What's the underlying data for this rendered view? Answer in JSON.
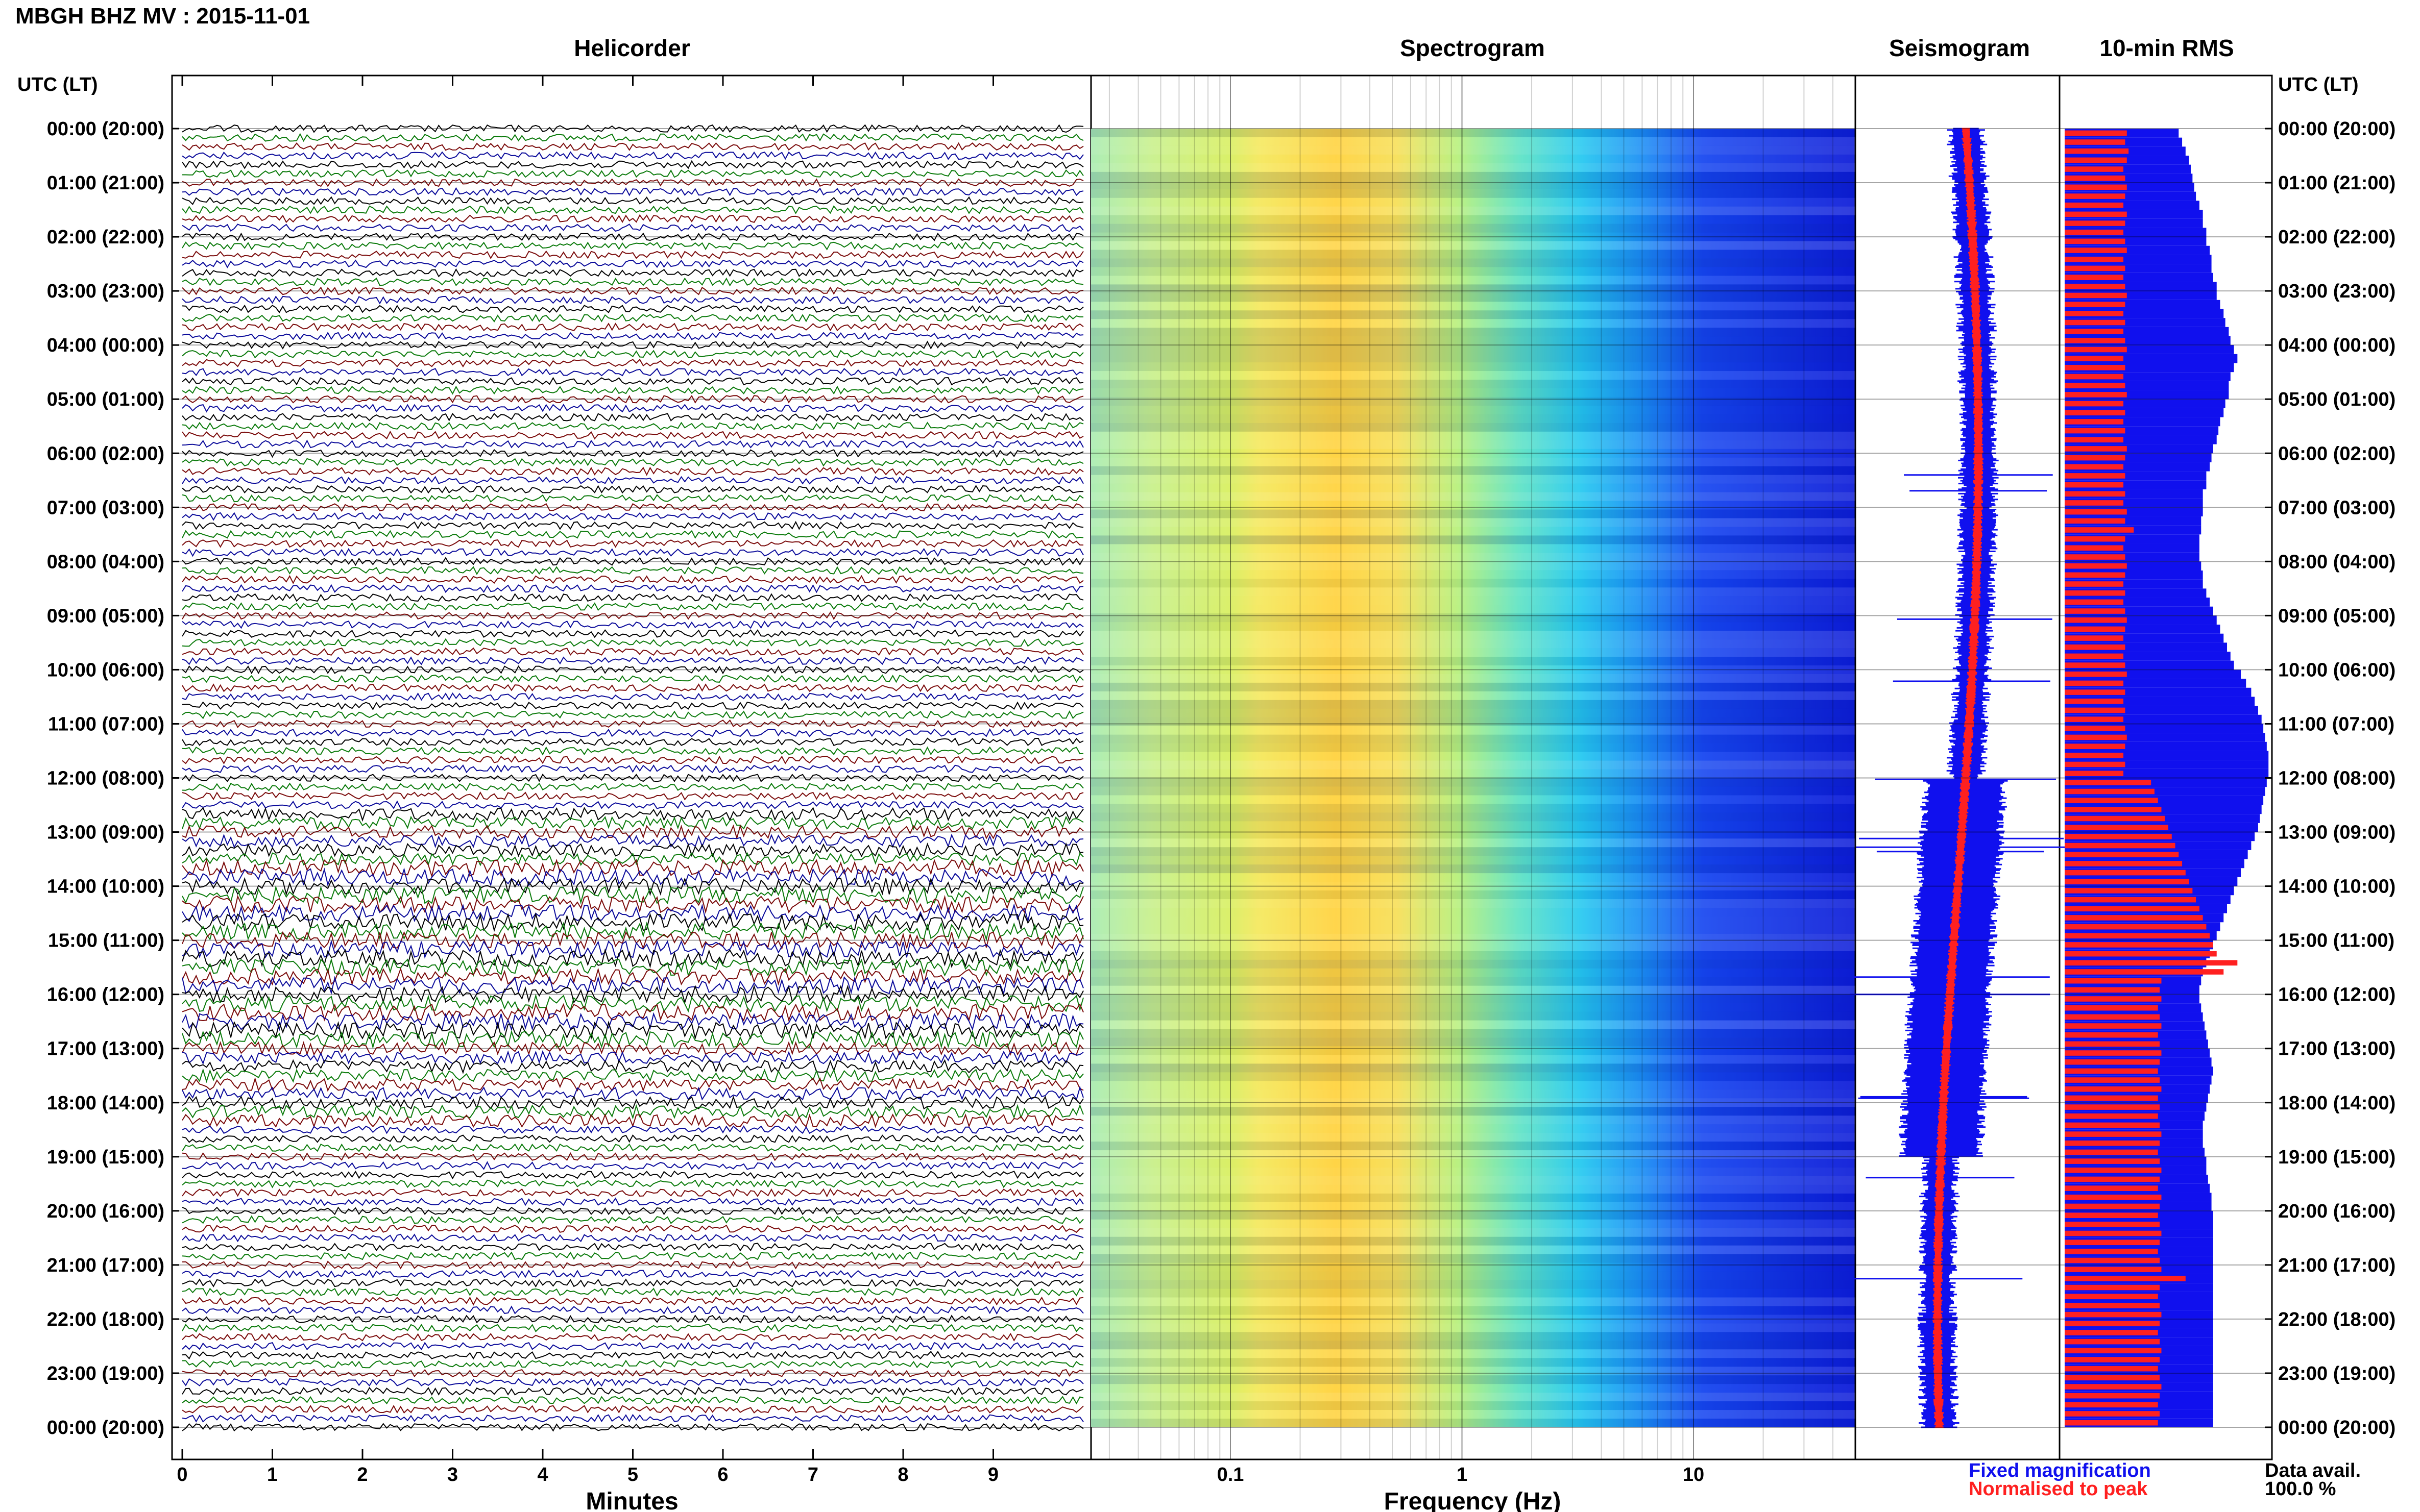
{
  "title": "MBGH BHZ MV : 2015-11-01",
  "time_axis_label": "UTC (LT)",
  "panels": {
    "helicorder": "Helicorder",
    "spectrogram": "Spectrogram",
    "seismogram": "Seismogram",
    "rms": "10-min RMS"
  },
  "time_ticks": [
    "00:00 (20:00)",
    "01:00 (21:00)",
    "02:00 (22:00)",
    "03:00 (23:00)",
    "04:00 (00:00)",
    "05:00 (01:00)",
    "06:00 (02:00)",
    "07:00 (03:00)",
    "08:00 (04:00)",
    "09:00 (05:00)",
    "10:00 (06:00)",
    "11:00 (07:00)",
    "12:00 (08:00)",
    "13:00 (09:00)",
    "14:00 (10:00)",
    "15:00 (11:00)",
    "16:00 (12:00)",
    "17:00 (13:00)",
    "18:00 (14:00)",
    "19:00 (15:00)",
    "20:00 (16:00)",
    "21:00 (17:00)",
    "22:00 (18:00)",
    "23:00 (19:00)",
    "00:00 (20:00)"
  ],
  "helicorder_xaxis": {
    "label": "Minutes",
    "ticks": [
      "0",
      "1",
      "2",
      "3",
      "4",
      "5",
      "6",
      "7",
      "8",
      "9"
    ]
  },
  "spectrogram_xaxis": {
    "label": "Frequency (Hz)",
    "ticks": [
      "0.1",
      "1",
      "10"
    ],
    "scale": "log"
  },
  "legend": {
    "fixed": "Fixed magnification",
    "normalised": "Normalised to peak",
    "fixed_color": "#1010ee",
    "normalised_color": "#ff2020"
  },
  "data_avail": {
    "label": "Data avail.",
    "value": "100.0 %"
  },
  "colors": {
    "black": "#000000",
    "green": "#0a7a0a",
    "red": "#7a0a0a",
    "blue": "#0a0a9a"
  },
  "chart_data": [
    {
      "type": "heatmap",
      "title": "Helicorder",
      "xlabel": "Minutes",
      "x_ticks": [
        0,
        1,
        2,
        3,
        4,
        5,
        6,
        7,
        8,
        9
      ],
      "xlim": [
        0,
        10
      ],
      "y_ticks": [
        "00:00 (20:00)",
        "01:00 (21:00)",
        "02:00 (22:00)",
        "03:00 (23:00)",
        "04:00 (00:00)",
        "05:00 (01:00)",
        "06:00 (02:00)",
        "07:00 (03:00)",
        "08:00 (04:00)",
        "09:00 (05:00)",
        "10:00 (06:00)",
        "11:00 (07:00)",
        "12:00 (08:00)",
        "13:00 (09:00)",
        "14:00 (10:00)",
        "15:00 (11:00)",
        "16:00 (12:00)",
        "17:00 (13:00)",
        "18:00 (14:00)",
        "19:00 (15:00)",
        "20:00 (16:00)",
        "21:00 (17:00)",
        "22:00 (18:00)",
        "23:00 (19:00)",
        "00:00 (20:00)"
      ],
      "trace_colors_cycle": [
        "black",
        "green",
        "red",
        "blue"
      ]
    },
    {
      "type": "heatmap",
      "title": "Spectrogram",
      "xlabel": "Frequency (Hz)",
      "x_ticks": [
        0.1,
        1,
        10
      ],
      "xscale": "log",
      "xlim": [
        0.025,
        50
      ],
      "colormap": "jet"
    },
    {
      "type": "line",
      "title": "Seismogram",
      "series": [
        {
          "name": "Fixed magnification",
          "color": "#1010ee"
        },
        {
          "name": "Normalised to peak",
          "color": "#ff2020"
        }
      ]
    },
    {
      "type": "bar",
      "title": "10-min RMS",
      "orientation": "horizontal",
      "series": [
        {
          "name": "Fixed magnification",
          "color": "#1010ee",
          "values": [
            0.66,
            0.68,
            0.7,
            0.72,
            0.73,
            0.74,
            0.75,
            0.76,
            0.78,
            0.8,
            0.8,
            0.82,
            0.82,
            0.84,
            0.85,
            0.85,
            0.86,
            0.88,
            0.88,
            0.9,
            0.92,
            0.93,
            0.95,
            0.96,
            0.98,
            1.0,
            0.98,
            0.96,
            0.95,
            0.95,
            0.93,
            0.92,
            0.9,
            0.89,
            0.88,
            0.86,
            0.85,
            0.84,
            0.82,
            0.82,
            0.8,
            0.8,
            0.8,
            0.79,
            0.79,
            0.78,
            0.78,
            0.78,
            0.79,
            0.8,
            0.8,
            0.82,
            0.84,
            0.86,
            0.88,
            0.9,
            0.92,
            0.94,
            0.96,
            0.98,
            1.02,
            1.05,
            1.08,
            1.1,
            1.12,
            1.14,
            1.15,
            1.16,
            1.17,
            1.18,
            1.18,
            1.18,
            1.17,
            1.16,
            1.15,
            1.14,
            1.13,
            1.12,
            1.1,
            1.08,
            1.06,
            1.04,
            1.02,
            1.0,
            0.98,
            0.96,
            0.94,
            0.92,
            0.9,
            0.88,
            0.86,
            0.84,
            0.82,
            0.8,
            0.79,
            0.78,
            0.78,
            0.79,
            0.8,
            0.81,
            0.82,
            0.83,
            0.84,
            0.85,
            0.86,
            0.85,
            0.84,
            0.83,
            0.82,
            0.81,
            0.8,
            0.8,
            0.8,
            0.81,
            0.82,
            0.82,
            0.83,
            0.84,
            0.85,
            0.85,
            0.86,
            0.86,
            0.86,
            0.86,
            0.86,
            0.86,
            0.86,
            0.86,
            0.86,
            0.86,
            0.86,
            0.86,
            0.86,
            0.86,
            0.86,
            0.86,
            0.86,
            0.86,
            0.86,
            0.86,
            0.86,
            0.86,
            0.86,
            0.86
          ]
        },
        {
          "name": "Normalised to peak",
          "color": "#ff2020",
          "values": [
            0.36,
            0.35,
            0.37,
            0.36,
            0.34,
            0.35,
            0.36,
            0.35,
            0.34,
            0.36,
            0.35,
            0.34,
            0.35,
            0.36,
            0.34,
            0.35,
            0.34,
            0.35,
            0.36,
            0.35,
            0.34,
            0.35,
            0.34,
            0.35,
            0.36,
            0.34,
            0.35,
            0.34,
            0.35,
            0.36,
            0.34,
            0.35,
            0.34,
            0.35,
            0.34,
            0.36,
            0.35,
            0.34,
            0.35,
            0.34,
            0.35,
            0.34,
            0.36,
            0.35,
            0.4,
            0.35,
            0.34,
            0.35,
            0.36,
            0.35,
            0.34,
            0.35,
            0.34,
            0.35,
            0.36,
            0.35,
            0.34,
            0.35,
            0.34,
            0.35,
            0.36,
            0.34,
            0.35,
            0.34,
            0.35,
            0.34,
            0.35,
            0.36,
            0.35,
            0.34,
            0.35,
            0.34,
            0.5,
            0.52,
            0.54,
            0.56,
            0.58,
            0.6,
            0.62,
            0.64,
            0.66,
            0.68,
            0.7,
            0.72,
            0.74,
            0.76,
            0.78,
            0.8,
            0.82,
            0.84,
            0.86,
            0.88,
            1.0,
            0.92,
            0.56,
            0.55,
            0.56,
            0.54,
            0.55,
            0.56,
            0.54,
            0.55,
            0.56,
            0.55,
            0.54,
            0.55,
            0.56,
            0.54,
            0.55,
            0.54,
            0.55,
            0.56,
            0.55,
            0.54,
            0.55,
            0.56,
            0.55,
            0.54,
            0.56,
            0.55,
            0.54,
            0.55,
            0.56,
            0.55,
            0.54,
            0.55,
            0.56,
            0.7,
            0.55,
            0.54,
            0.55,
            0.56,
            0.55,
            0.54,
            0.55,
            0.56,
            0.55,
            0.54,
            0.55,
            0.56,
            0.55,
            0.54,
            0.55,
            0.54
          ]
        }
      ]
    }
  ]
}
